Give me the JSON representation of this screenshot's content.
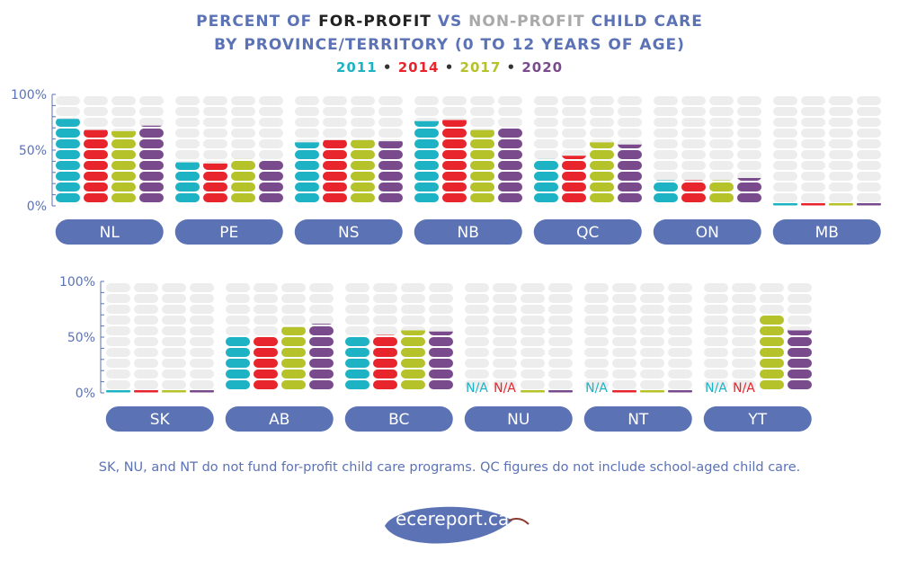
{
  "title": {
    "line1_pre": "PERCENT OF ",
    "line1_fp": "FOR-PROFIT",
    "line1_vs": " VS ",
    "line1_np": "NON-PROFIT",
    "line1_post": " CHILD CARE",
    "line2": "BY PROVINCE/TERRITORY (0 TO 12 YEARS OF AGE)",
    "years": [
      "2011",
      "2014",
      "2017",
      "2020"
    ],
    "separator": "•"
  },
  "chart_data": {
    "type": "bar",
    "title": "Percent of for-profit vs non-profit child care by province/territory (0 to 12 years of age)",
    "series": [
      {
        "name": "2011",
        "color": "#1eb3c4"
      },
      {
        "name": "2014",
        "color": "#e8242c"
      },
      {
        "name": "2017",
        "color": "#b5c22a"
      },
      {
        "name": "2020",
        "color": "#7a4b8c"
      }
    ],
    "ylim": [
      0,
      100
    ],
    "y_ticks": [
      "100%",
      "50%",
      "0%"
    ],
    "categories": [
      "NL",
      "PE",
      "NS",
      "NB",
      "QC",
      "ON",
      "MB",
      "SK",
      "AB",
      "BC",
      "NU",
      "NT",
      "YT"
    ],
    "values": {
      "NL": [
        78,
        68,
        67,
        72
      ],
      "PE": [
        39,
        38,
        42,
        41
      ],
      "NS": [
        57,
        59,
        59,
        58
      ],
      "NB": [
        76,
        77,
        68,
        70
      ],
      "QC": [
        42,
        45,
        57,
        55
      ],
      "ON": [
        23,
        23,
        23,
        25
      ],
      "MB": [
        1,
        1,
        1,
        1
      ],
      "SK": [
        0.5,
        0.5,
        0.5,
        0.5
      ],
      "AB": [
        50,
        50,
        59,
        62
      ],
      "BC": [
        50,
        52,
        56,
        55
      ],
      "NU": [
        null,
        null,
        0,
        0
      ],
      "NT": [
        null,
        0,
        0,
        0
      ],
      "YT": [
        null,
        null,
        70,
        56
      ]
    },
    "na_label": "N/A"
  },
  "footnote": "SK, NU, and NT do not fund for-profit child care programs. QC figures do not include school-aged child care.",
  "logo_text": "ecereport.ca",
  "colors": {
    "label_pill": "#5b72b5",
    "empty_bar": "#ededed",
    "axis": "#5b72b5",
    "leaf": "#5b72b5",
    "stem": "#8b3a2e"
  }
}
